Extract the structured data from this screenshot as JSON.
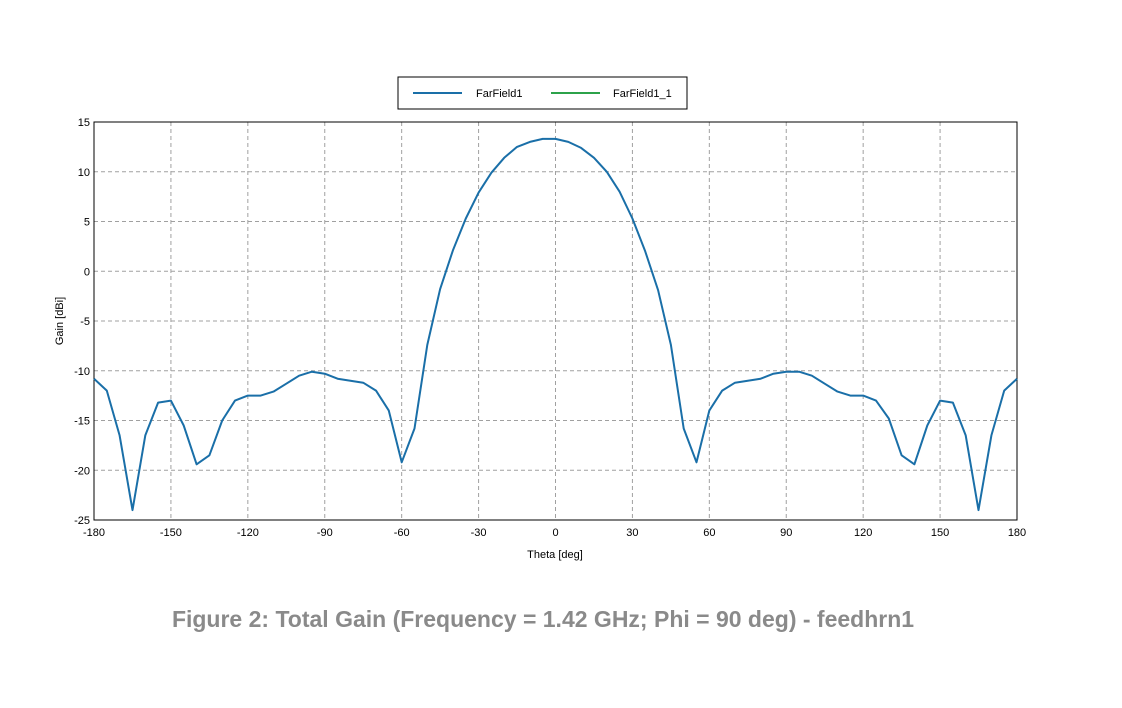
{
  "caption": "Figure 2: Total Gain (Frequency = 1.42 GHz; Phi = 90 deg) - feedhrn1",
  "colors": {
    "farfield1": "#1a6fa8",
    "farfield1_1": "#2ca24a",
    "grid": "#a0a0a0",
    "caption": "#8a8a8a"
  },
  "chart_data": {
    "type": "line",
    "xlabel": "Theta [deg]",
    "ylabel": "Gain [dBi]",
    "xlim": [
      -180,
      180
    ],
    "ylim": [
      -25,
      15
    ],
    "xticks": [
      -180,
      -150,
      -120,
      -90,
      -60,
      -30,
      0,
      30,
      60,
      90,
      120,
      150,
      180
    ],
    "yticks": [
      15,
      10,
      5,
      0,
      -5,
      -10,
      -15,
      -20,
      -25
    ],
    "grid": true,
    "legend_position": "top-center",
    "legend": [
      "FarField1",
      "FarField1_1"
    ],
    "series": [
      {
        "name": "FarField1",
        "x": [
          -180,
          -175,
          -170,
          -165,
          -160,
          -155,
          -150,
          -145,
          -140,
          -135,
          -130,
          -125,
          -120,
          -115,
          -110,
          -105,
          -100,
          -95,
          -90,
          -85,
          -80,
          -75,
          -70,
          -65,
          -60,
          -55,
          -50,
          -45,
          -40,
          -35,
          -30,
          -25,
          -20,
          -15,
          -10,
          -5,
          0,
          5,
          10,
          15,
          20,
          25,
          30,
          35,
          40,
          45,
          50,
          55,
          60,
          65,
          70,
          75,
          80,
          85,
          90,
          95,
          100,
          105,
          110,
          115,
          120,
          125,
          130,
          135,
          140,
          145,
          150,
          155,
          160,
          165,
          170,
          175,
          180
        ],
        "y": [
          -10.8,
          -12.0,
          -16.5,
          -24.0,
          -16.5,
          -13.2,
          -13.0,
          -15.5,
          -19.4,
          -18.5,
          -15.0,
          -13.0,
          -12.5,
          -12.5,
          -12.1,
          -11.3,
          -10.5,
          -10.1,
          -10.3,
          -10.8,
          -11.0,
          -11.2,
          -12.0,
          -14.0,
          -19.2,
          -15.8,
          -7.4,
          -1.8,
          2.1,
          5.3,
          7.9,
          9.9,
          11.4,
          12.5,
          13.0,
          13.3,
          13.3,
          13.0,
          12.4,
          11.4,
          10.0,
          8.0,
          5.3,
          2.0,
          -1.9,
          -7.4,
          -15.8,
          -19.2,
          -14.0,
          -12.0,
          -11.2,
          -11.0,
          -10.8,
          -10.3,
          -10.1,
          -10.1,
          -10.5,
          -11.3,
          -12.1,
          -12.5,
          -12.5,
          -13.0,
          -14.8,
          -18.5,
          -19.4,
          -15.5,
          -13.0,
          -13.2,
          -16.5,
          -24.0,
          -16.5,
          -12.0,
          -10.8
        ]
      },
      {
        "name": "FarField1_1",
        "x": [],
        "y": []
      }
    ]
  }
}
